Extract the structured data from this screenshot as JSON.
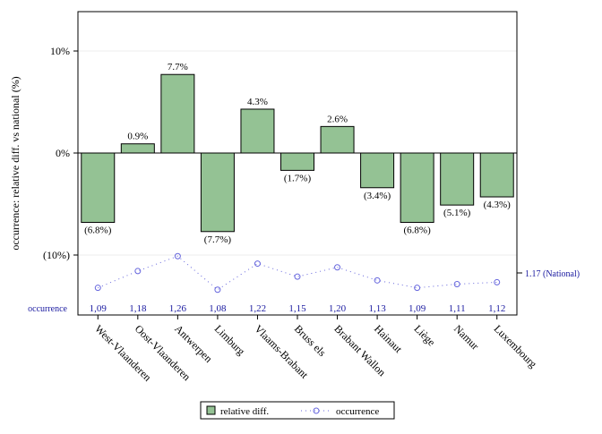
{
  "chart_data": {
    "type": "bar",
    "ylabel": "occurrence: relative diff. vs national (%)",
    "categories": [
      "West-Vlaanderen",
      "Oost-Vlaanderen",
      "Antwerpen",
      "Limburg",
      "Vlaams-Brabant",
      "Bruss els",
      "Brabant Wallon",
      "Hainaut",
      "Liège",
      "Namur",
      "Luxembourg"
    ],
    "series": [
      {
        "name": "relative diff.",
        "values": [
          -6.8,
          0.9,
          7.7,
          -7.7,
          4.3,
          -1.7,
          2.6,
          -3.4,
          -6.8,
          -5.1,
          -4.3
        ],
        "data_labels": [
          "(6.8%)",
          "0.9%",
          "7.7%",
          "(7.7%)",
          "4.3%",
          "(1.7%)",
          "2.6%",
          "(3.4%)",
          "(6.8%)",
          "(5.1%)",
          "(4.3%)"
        ],
        "color": "#94c294"
      },
      {
        "name": "occurrence",
        "values": [
          1.09,
          1.18,
          1.26,
          1.08,
          1.22,
          1.15,
          1.2,
          1.13,
          1.09,
          1.11,
          1.12
        ],
        "value_labels": [
          "1,09",
          "1,18",
          "1,26",
          "1,08",
          "1,22",
          "1,15",
          "1,20",
          "1,13",
          "1,09",
          "1,11",
          "1,12"
        ],
        "color": "#6666dd"
      }
    ],
    "ylim": [
      -15,
      14
    ],
    "yticks": [
      10,
      0,
      -10
    ],
    "ytick_labels": [
      "10%",
      "0%",
      "(10%)"
    ],
    "occurrence_row_label": "occurrence",
    "national_label": "1.17 (National)",
    "national_value": 1.17,
    "legend_position": "bottom",
    "grid": true
  }
}
